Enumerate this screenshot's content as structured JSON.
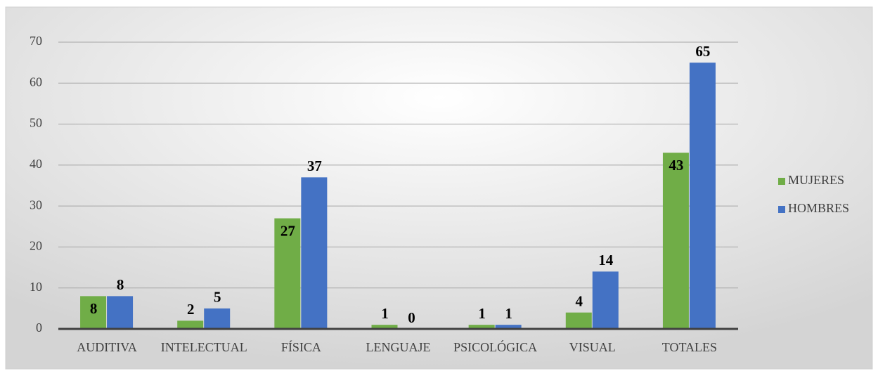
{
  "chart_data": {
    "type": "bar",
    "categories": [
      "AUDITIVA",
      "INTELECTUAL",
      "FÍSICA",
      "LENGUAJE",
      "PSICOLÓGICA",
      "VISUAL",
      "TOTALES"
    ],
    "series": [
      {
        "name": "MUJERES",
        "color": "#70ad47",
        "values": [
          8,
          2,
          27,
          1,
          1,
          4,
          43
        ]
      },
      {
        "name": "HOMBRES",
        "color": "#4472c4",
        "values": [
          8,
          5,
          37,
          0,
          1,
          14,
          65
        ]
      }
    ],
    "ylim": [
      0,
      70
    ],
    "yticks": [
      0,
      10,
      20,
      30,
      40,
      50,
      60,
      70
    ],
    "grid": true,
    "legend": "right"
  }
}
